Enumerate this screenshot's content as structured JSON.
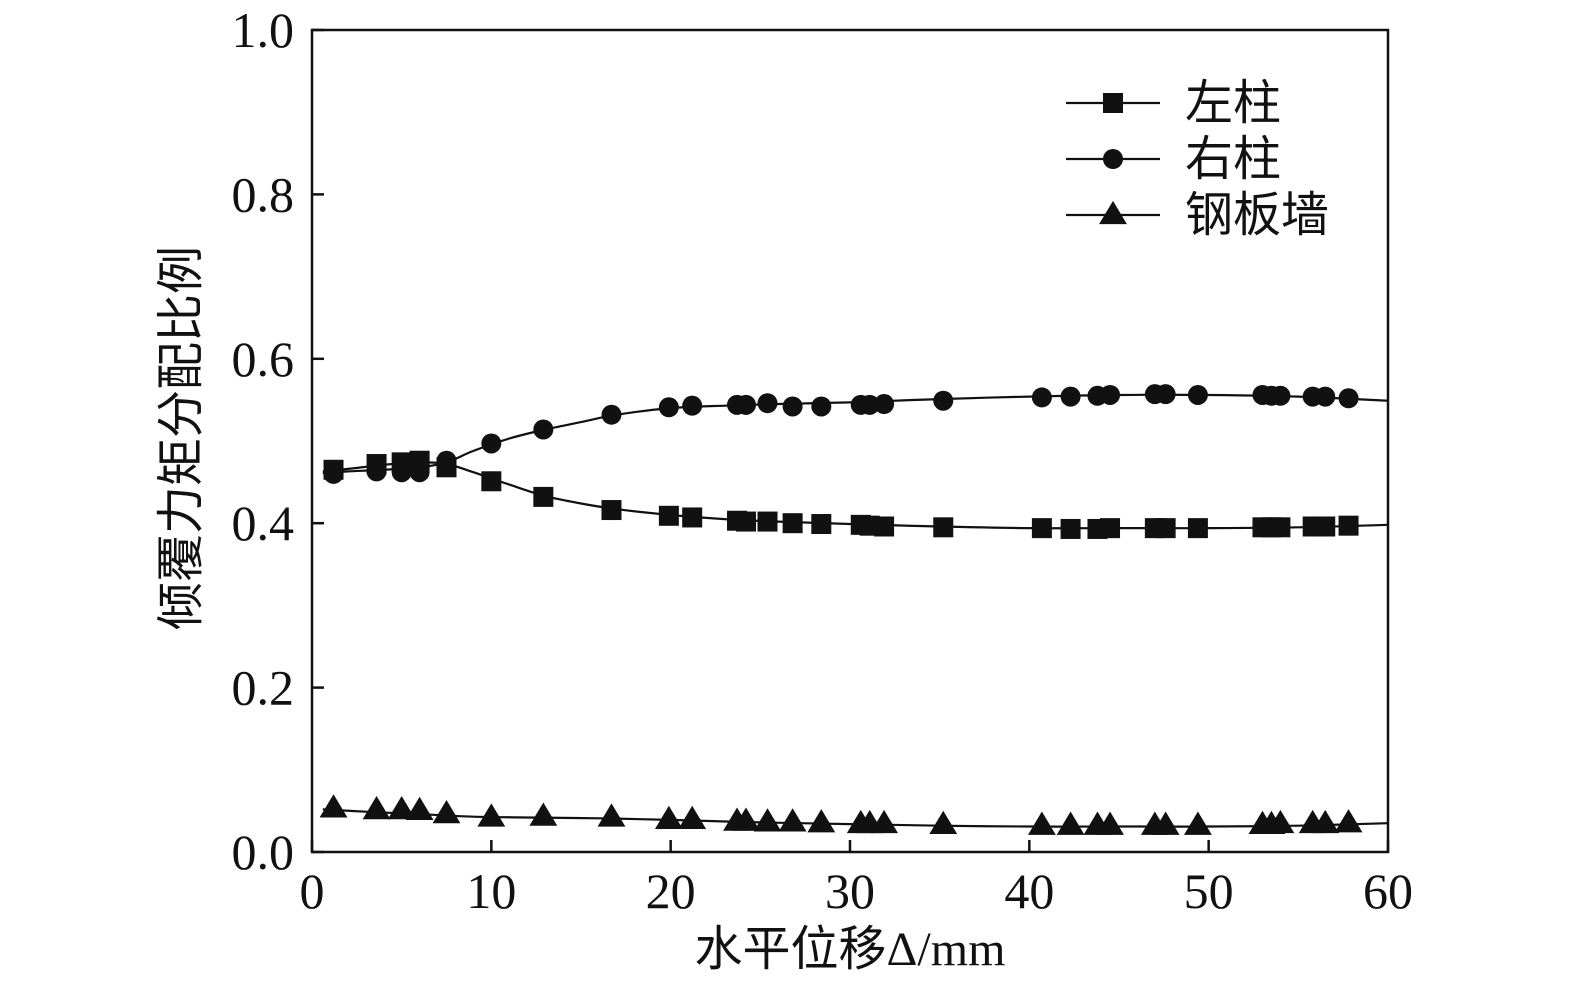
{
  "chart_data": {
    "type": "line",
    "xlabel": "水平位移Δ/mm",
    "ylabel": "倾覆力矩分配比例",
    "xlim": [
      0,
      60
    ],
    "ylim": [
      0.0,
      1.0
    ],
    "xticks": [
      0,
      10,
      20,
      30,
      40,
      50,
      60
    ],
    "xtick_labels": [
      "0",
      "10",
      "20",
      "30",
      "40",
      "50",
      "60"
    ],
    "yticks": [
      0.0,
      0.2,
      0.4,
      0.6,
      0.8,
      1.0
    ],
    "ytick_labels": [
      "0.0",
      "0.2",
      "0.4",
      "0.6",
      "0.8",
      "1.0"
    ],
    "legend_position": "top-right",
    "series": [
      {
        "name": "左柱",
        "marker": "square",
        "x": [
          1.2,
          3.6,
          5.0,
          6.0,
          7.5,
          10.0,
          12.9,
          16.7,
          19.9,
          21.2,
          23.7,
          24.2,
          25.4,
          26.8,
          28.4,
          30.6,
          31.1,
          31.9,
          35.2,
          40.7,
          42.3,
          43.8,
          44.5,
          47.0,
          47.6,
          49.4,
          53.0,
          53.5,
          54.0,
          55.8,
          56.5,
          57.8
        ],
        "y": [
          0.465,
          0.472,
          0.474,
          0.476,
          0.468,
          0.451,
          0.432,
          0.416,
          0.409,
          0.407,
          0.403,
          0.402,
          0.402,
          0.4,
          0.399,
          0.398,
          0.397,
          0.396,
          0.395,
          0.394,
          0.393,
          0.393,
          0.394,
          0.394,
          0.394,
          0.394,
          0.395,
          0.395,
          0.395,
          0.396,
          0.396,
          0.397
        ],
        "curve_x": [
          0.6,
          2,
          4,
          6,
          7.5,
          9,
          11,
          13,
          15,
          17,
          20,
          23,
          26,
          30,
          35,
          40,
          45,
          50,
          55,
          60
        ],
        "curve_y": [
          0.463,
          0.466,
          0.471,
          0.474,
          0.472,
          0.462,
          0.447,
          0.433,
          0.424,
          0.417,
          0.41,
          0.405,
          0.402,
          0.399,
          0.396,
          0.394,
          0.394,
          0.394,
          0.395,
          0.398
        ]
      },
      {
        "name": "右柱",
        "marker": "circle",
        "x": [
          1.2,
          3.6,
          5.0,
          6.0,
          7.5,
          10.0,
          12.9,
          16.7,
          19.9,
          21.2,
          23.7,
          24.2,
          25.4,
          26.8,
          28.4,
          30.6,
          31.1,
          31.9,
          35.2,
          40.7,
          42.3,
          43.8,
          44.5,
          47.0,
          47.6,
          49.4,
          53.0,
          53.5,
          54.0,
          55.8,
          56.5,
          57.8
        ],
        "y": [
          0.46,
          0.463,
          0.462,
          0.462,
          0.476,
          0.497,
          0.514,
          0.532,
          0.541,
          0.543,
          0.544,
          0.544,
          0.546,
          0.542,
          0.542,
          0.544,
          0.544,
          0.545,
          0.549,
          0.553,
          0.554,
          0.555,
          0.556,
          0.557,
          0.557,
          0.556,
          0.556,
          0.555,
          0.555,
          0.554,
          0.554,
          0.552
        ],
        "curve_x": [
          0.6,
          2,
          4,
          6,
          7.5,
          9,
          11,
          13,
          15,
          17,
          20,
          23,
          26,
          30,
          35,
          40,
          45,
          50,
          55,
          60
        ],
        "curve_y": [
          0.461,
          0.463,
          0.465,
          0.468,
          0.474,
          0.488,
          0.503,
          0.514,
          0.523,
          0.532,
          0.54,
          0.543,
          0.545,
          0.547,
          0.551,
          0.554,
          0.556,
          0.556,
          0.554,
          0.549
        ]
      },
      {
        "name": "钢板墙",
        "marker": "triangle",
        "x": [
          1.2,
          3.6,
          5.0,
          6.0,
          7.5,
          10.0,
          12.9,
          16.7,
          19.9,
          21.2,
          23.7,
          24.2,
          25.4,
          26.8,
          28.4,
          30.6,
          31.1,
          31.9,
          35.2,
          40.7,
          42.3,
          43.8,
          44.5,
          47.0,
          47.6,
          49.4,
          53.0,
          53.5,
          54.0,
          55.8,
          56.5,
          57.8
        ],
        "y": [
          0.053,
          0.051,
          0.051,
          0.05,
          0.046,
          0.042,
          0.043,
          0.042,
          0.039,
          0.039,
          0.037,
          0.037,
          0.036,
          0.036,
          0.035,
          0.034,
          0.034,
          0.034,
          0.033,
          0.032,
          0.032,
          0.032,
          0.032,
          0.032,
          0.032,
          0.032,
          0.033,
          0.033,
          0.034,
          0.034,
          0.034,
          0.035
        ],
        "curve_x": [
          0.6,
          3,
          6,
          9,
          12,
          16,
          20,
          25,
          30,
          35,
          40,
          45,
          50,
          55,
          60
        ],
        "curve_y": [
          0.052,
          0.049,
          0.046,
          0.043,
          0.042,
          0.041,
          0.039,
          0.036,
          0.034,
          0.032,
          0.031,
          0.031,
          0.031,
          0.032,
          0.035
        ]
      }
    ]
  }
}
